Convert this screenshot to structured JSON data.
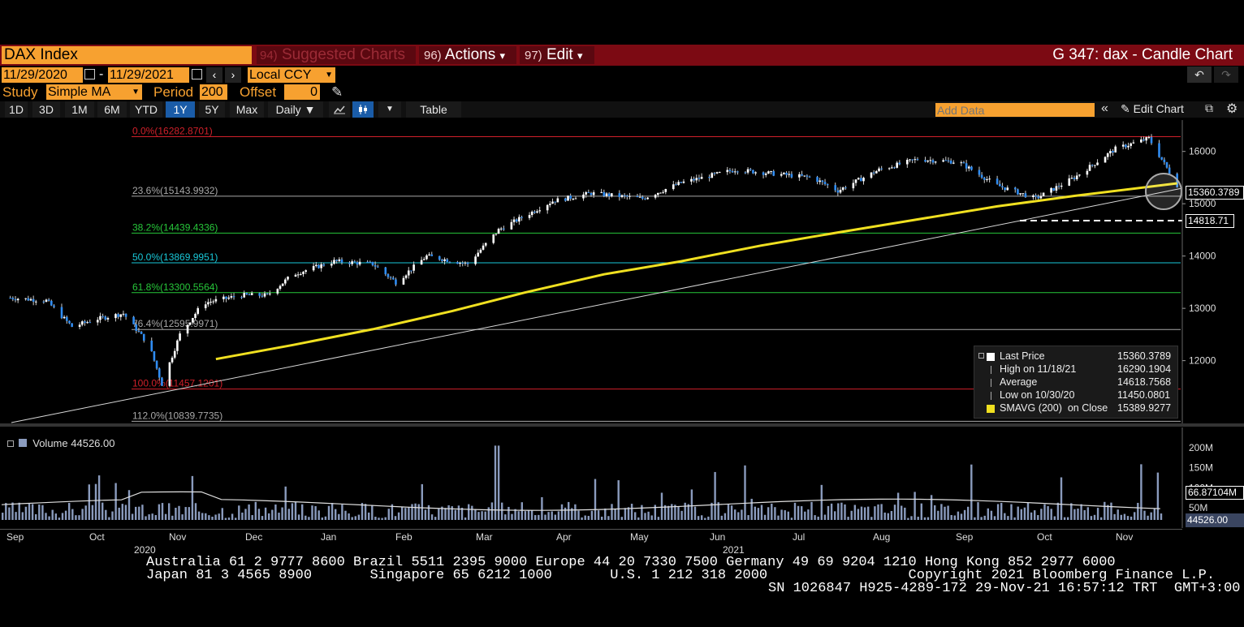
{
  "header": {
    "security": "DAX Index",
    "menus": [
      {
        "num": "94)",
        "label": "Suggested Charts",
        "dim": true
      },
      {
        "num": "96)",
        "label": "Actions",
        "caret": "▾"
      },
      {
        "num": "97)",
        "label": "Edit",
        "caret": "▾"
      }
    ],
    "title": "G 347: dax - Candle Chart"
  },
  "dates": {
    "start": "11/29/2020",
    "separator": "-",
    "end": "11/29/2021",
    "currency": "Local CCY"
  },
  "study": {
    "label": "Study",
    "value": "Simple MA",
    "period_label": "Period",
    "period": "200",
    "offset_label": "Offset",
    "offset": "0"
  },
  "toolbar": {
    "ranges": [
      "1D",
      "3D",
      "1M",
      "6M",
      "YTD",
      "1Y",
      "5Y",
      "Max"
    ],
    "active_range": "1Y",
    "frequency": "Daily ▼",
    "table": "Table",
    "add_data_placeholder": "Add Data",
    "edit_chart": "Edit Chart"
  },
  "fib_levels": [
    {
      "label": "0.0%(16282.8701)",
      "value": 16282.8701,
      "color": "#d0202a"
    },
    {
      "label": "23.6%(15143.9932)",
      "value": 15143.9932,
      "color": "#a8a8a8"
    },
    {
      "label": "38.2%(14439.4336)",
      "value": 14439.4336,
      "color": "#27c73a"
    },
    {
      "label": "50.0%(13869.9951)",
      "value": 13869.9951,
      "color": "#19c8d8"
    },
    {
      "label": "61.8%(13300.5564)",
      "value": 13300.5564,
      "color": "#27c73a"
    },
    {
      "label": "76.4%(12595.9971)",
      "value": 12595.9971,
      "color": "#a8a8a8"
    },
    {
      "label": "100.0%(11457.1201)",
      "value": 11457.1201,
      "color": "#d0202a"
    },
    {
      "label": "112.0%(10839.7735)",
      "value": 10839.7735,
      "color": "#a8a8a8"
    }
  ],
  "price_axis": {
    "ticks": [
      "16000",
      "15000",
      "14000",
      "13000",
      "12000"
    ],
    "last_price_tag": "15360.3789",
    "level_tag": "14818.71"
  },
  "legend": [
    {
      "label": "Last Price",
      "value": "15360.3789",
      "marker": "square-white"
    },
    {
      "label": "High on 11/18/21",
      "value": "16290.1904",
      "marker": "high"
    },
    {
      "label": "Average",
      "value": "14618.7568",
      "marker": "avg"
    },
    {
      "label": "Low on 10/30/20",
      "value": "11450.0801",
      "marker": "low"
    },
    {
      "label": "SMAVG (200)  on Close",
      "value": "15389.9277",
      "marker": "square-yellow"
    }
  ],
  "volume": {
    "label": "Volume",
    "value": "44526.00",
    "ticks": [
      "200M",
      "150M",
      "100M",
      "50M"
    ],
    "avg_tag": "66.87104M",
    "last_tag": "44526.00"
  },
  "x_axis": {
    "months": [
      "Sep",
      "Oct",
      "Nov",
      "Dec",
      "Jan",
      "Feb",
      "Mar",
      "Apr",
      "May",
      "Jun",
      "Jul",
      "Aug",
      "Sep",
      "Oct",
      "Nov"
    ],
    "years": [
      "2020",
      "2021"
    ]
  },
  "footer": {
    "line1": "Australia 61 2 9777 8600 Brazil 5511 2395 9000 Europe 44 20 7330 7500 Germany 49 69 9204 1210 Hong Kong 852 2977 6000",
    "line2": "Japan 81 3 4565 8900       Singapore 65 6212 1000       U.S. 1 212 318 2000                 Copyright 2021 Bloomberg Finance L.P.",
    "line3": "SN 1026847 H925-4289-172 29-Nov-21 16:57:12 TRT  GMT+3:00"
  },
  "chart_data": {
    "type": "candlestick",
    "ylim": [
      10800,
      16600
    ],
    "price_path": [
      [
        "2020-09-01",
        13200
      ],
      [
        "2020-09-15",
        13150
      ],
      [
        "2020-09-25",
        12650
      ],
      [
        "2020-10-05",
        12800
      ],
      [
        "2020-10-15",
        12900
      ],
      [
        "2020-10-25",
        12300
      ],
      [
        "2020-10-30",
        11550
      ],
      [
        "2020-11-06",
        12500
      ],
      [
        "2020-11-15",
        13100
      ],
      [
        "2020-11-30",
        13250
      ],
      [
        "2020-12-10",
        13250
      ],
      [
        "2020-12-20",
        13650
      ],
      [
        "2021-01-05",
        13900
      ],
      [
        "2021-01-20",
        13850
      ],
      [
        "2021-01-29",
        13500
      ],
      [
        "2021-02-10",
        14000
      ],
      [
        "2021-02-26",
        13850
      ],
      [
        "2021-03-10",
        14500
      ],
      [
        "2021-03-31",
        15050
      ],
      [
        "2021-04-15",
        15200
      ],
      [
        "2021-05-05",
        15100
      ],
      [
        "2021-05-20",
        15400
      ],
      [
        "2021-06-10",
        15650
      ],
      [
        "2021-06-30",
        15550
      ],
      [
        "2021-07-10",
        15500
      ],
      [
        "2021-07-20",
        15250
      ],
      [
        "2021-08-05",
        15650
      ],
      [
        "2021-08-20",
        15850
      ],
      [
        "2021-09-05",
        15800
      ],
      [
        "2021-09-20",
        15350
      ],
      [
        "2021-10-05",
        15100
      ],
      [
        "2021-10-20",
        15500
      ],
      [
        "2021-11-05",
        16050
      ],
      [
        "2021-11-18",
        16250
      ],
      [
        "2021-11-29",
        15360
      ]
    ],
    "sma200": [
      [
        "2020-11-20",
        12030
      ],
      [
        "2020-12-20",
        12300
      ],
      [
        "2021-01-20",
        12600
      ],
      [
        "2021-02-20",
        12950
      ],
      [
        "2021-03-20",
        13300
      ],
      [
        "2021-04-20",
        13650
      ],
      [
        "2021-05-20",
        13900
      ],
      [
        "2021-06-20",
        14200
      ],
      [
        "2021-07-20",
        14450
      ],
      [
        "2021-08-20",
        14700
      ],
      [
        "2021-09-20",
        14950
      ],
      [
        "2021-10-20",
        15150
      ],
      [
        "2021-11-29",
        15390
      ]
    ]
  }
}
